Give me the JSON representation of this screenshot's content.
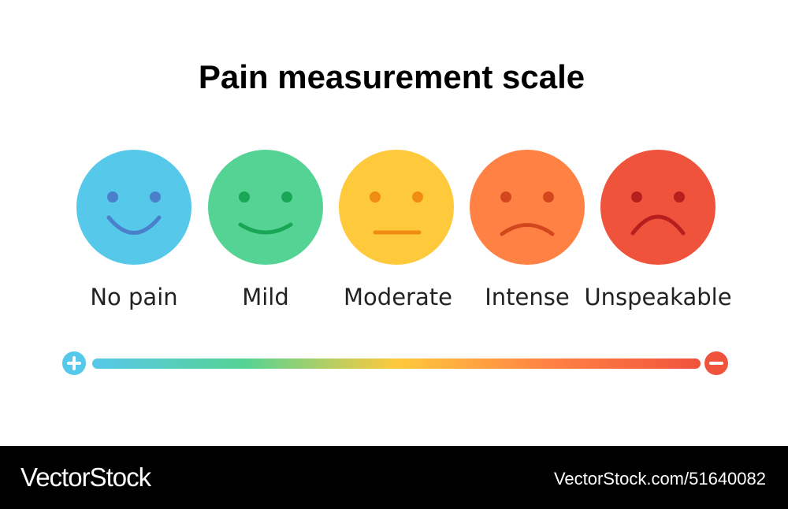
{
  "header": {
    "title": "Pain measurement scale"
  },
  "scale": {
    "levels": [
      {
        "label": "No pain"
      },
      {
        "label": "Mild"
      },
      {
        "label": "Moderate"
      },
      {
        "label": "Intense"
      },
      {
        "label": "Unspeakable"
      }
    ]
  },
  "footer": {
    "brand": "VectorStock",
    "url": "VectorStock.com/51640082"
  }
}
